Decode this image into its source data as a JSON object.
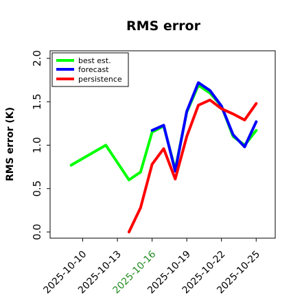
{
  "chart_data": {
    "type": "line",
    "title": "RMS error",
    "xlabel": "",
    "ylabel": "RMS error (K)",
    "ylim": [
      0.0,
      2.0
    ],
    "y_ticks": [
      0.0,
      0.5,
      1.0,
      1.5,
      2.0
    ],
    "y_tick_labels": [
      "0.0",
      "0.5",
      "1.0",
      "1.5",
      "2.0"
    ],
    "x_range": [
      "2025-10-09",
      "2025-10-26"
    ],
    "x_ticks": [
      "2025-10-10",
      "2025-10-13",
      "2025-10-16",
      "2025-10-19",
      "2025-10-22",
      "2025-10-25"
    ],
    "x_tick_labels": [
      "2025-10-10",
      "2025-10-13",
      "2025-10-16",
      "2025-10-19",
      "2025-10-22",
      "2025-10-25"
    ],
    "highlight_tick": "2025-10-16",
    "highlight_color": "#228b22",
    "grid": false,
    "legend_position": "top-left",
    "series": [
      {
        "name": "best est.",
        "color": "#00ff00",
        "x": [
          "2025-10-09",
          "2025-10-12",
          "2025-10-13",
          "2025-10-14",
          "2025-10-15",
          "2025-10-16",
          "2025-10-17",
          "2025-10-18",
          "2025-10-19",
          "2025-10-20",
          "2025-10-21",
          "2025-10-22",
          "2025-10-23",
          "2025-10-24",
          "2025-10-25"
        ],
        "y": [
          0.77,
          1.0,
          0.8,
          0.6,
          0.69,
          1.15,
          1.22,
          0.72,
          1.38,
          1.69,
          1.6,
          1.45,
          1.1,
          1.0,
          1.17
        ]
      },
      {
        "name": "forecast",
        "color": "#0000ff",
        "x": [
          "2025-10-16",
          "2025-10-17",
          "2025-10-18",
          "2025-10-19",
          "2025-10-20",
          "2025-10-21",
          "2025-10-22",
          "2025-10-23",
          "2025-10-24",
          "2025-10-25"
        ],
        "y": [
          1.17,
          1.23,
          0.7,
          1.39,
          1.72,
          1.63,
          1.45,
          1.12,
          0.98,
          1.27
        ]
      },
      {
        "name": "persistence",
        "color": "#ff0000",
        "x": [
          "2025-10-14",
          "2025-10-15",
          "2025-10-16",
          "2025-10-17",
          "2025-10-18",
          "2025-10-19",
          "2025-10-20",
          "2025-10-21",
          "2025-10-22",
          "2025-10-23",
          "2025-10-24",
          "2025-10-25"
        ],
        "y": [
          0.0,
          0.28,
          0.78,
          0.96,
          0.61,
          1.1,
          1.46,
          1.52,
          1.42,
          1.36,
          1.29,
          1.48
        ]
      }
    ]
  }
}
